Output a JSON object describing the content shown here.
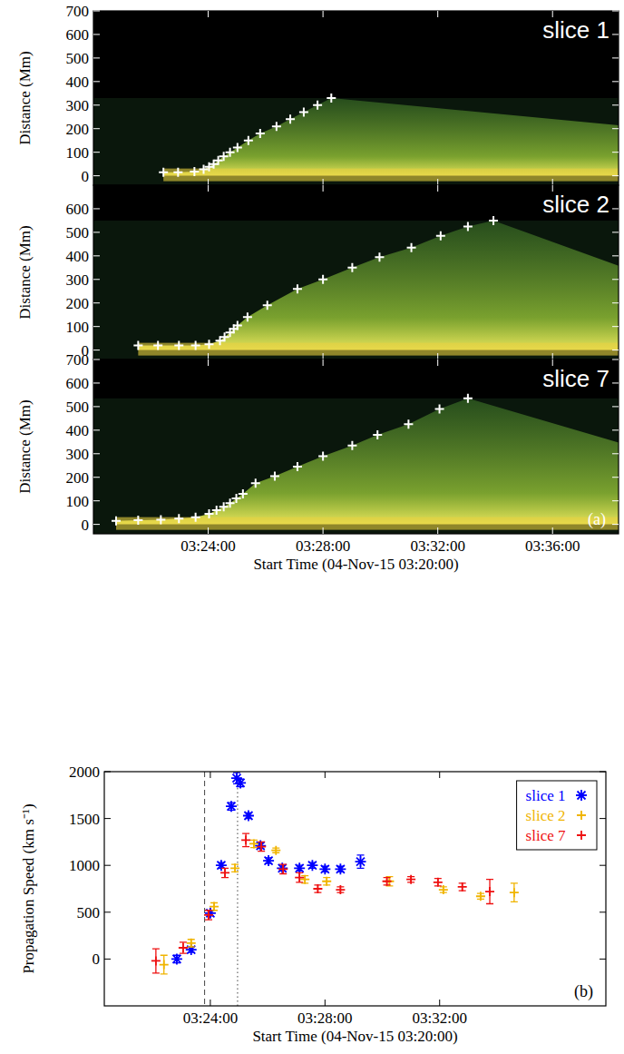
{
  "chart_data": [
    {
      "type": "scatter",
      "title": "slice 1",
      "ylabel": "Distance (Mm)",
      "tick_labels": "y",
      "marker": "plus",
      "color": "#ffffff",
      "x": [
        2.44,
        2.95,
        3.52,
        3.84,
        4.03,
        4.19,
        4.35,
        4.54,
        4.76,
        5.02,
        5.4,
        5.81,
        6.38,
        6.86,
        7.33,
        7.81,
        8.29
      ],
      "values": [
        15,
        15,
        18,
        27,
        38,
        50,
        65,
        82,
        100,
        120,
        150,
        180,
        210,
        240,
        270,
        300,
        330
      ],
      "xlim": [
        0,
        18.3
      ],
      "ylim": [
        -40,
        700
      ],
      "xticks": [
        {
          "value": 4,
          "label": "03:24:00"
        },
        {
          "value": 8,
          "label": "03:28:00"
        },
        {
          "value": 12,
          "label": "03:32:00"
        },
        {
          "value": 16,
          "label": "03:36:00"
        }
      ],
      "yticks": [
        0,
        100,
        200,
        300,
        400,
        500,
        600,
        700
      ]
    },
    {
      "type": "scatter",
      "title": "slice 2",
      "ylabel": "Distance (Mm)",
      "tick_labels": "y",
      "marker": "plus",
      "color": "#ffffff",
      "x": [
        1.56,
        2.25,
        2.98,
        3.56,
        4.03,
        4.41,
        4.57,
        4.76,
        4.89,
        5.02,
        5.37,
        6.06,
        7.11,
        8.0,
        9.02,
        9.97,
        11.08,
        12.1,
        13.05,
        13.94
      ],
      "values": [
        20,
        20,
        20,
        20,
        25,
        40,
        55,
        75,
        90,
        105,
        140,
        190,
        260,
        300,
        350,
        395,
        435,
        485,
        525,
        550
      ],
      "xlim": [
        0,
        18.3
      ],
      "ylim": [
        -40,
        700
      ],
      "xticks": [
        {
          "value": 4,
          "label": "03:24:00"
        },
        {
          "value": 8,
          "label": "03:28:00"
        },
        {
          "value": 12,
          "label": "03:32:00"
        },
        {
          "value": 16,
          "label": "03:36:00"
        }
      ],
      "yticks": [
        0,
        100,
        200,
        300,
        400,
        500,
        600
      ]
    },
    {
      "type": "scatter",
      "title": "slice 7",
      "ylabel": "Distance (Mm)",
      "xlabel": "Start Time (04-Nov-15 03:20:00)",
      "panel_label": "(a)",
      "marker": "plus",
      "color": "#ffffff",
      "x": [
        0.79,
        1.56,
        2.35,
        2.98,
        3.56,
        4.03,
        4.29,
        4.54,
        4.76,
        4.98,
        5.21,
        5.65,
        6.32,
        7.11,
        8.0,
        9.02,
        9.9,
        10.98,
        12.06,
        13.05
      ],
      "values": [
        15,
        18,
        20,
        25,
        30,
        45,
        60,
        75,
        90,
        110,
        130,
        175,
        205,
        245,
        290,
        335,
        380,
        425,
        490,
        535
      ],
      "xlim": [
        0,
        18.3
      ],
      "ylim": [
        -40,
        700
      ],
      "xticks": [
        {
          "value": 4,
          "label": "03:24:00"
        },
        {
          "value": 8,
          "label": "03:28:00"
        },
        {
          "value": 12,
          "label": "03:32:00"
        },
        {
          "value": 16,
          "label": "03:36:00"
        }
      ],
      "yticks": [
        0,
        100,
        200,
        300,
        400,
        500,
        600,
        700
      ]
    },
    {
      "type": "scatter",
      "ylabel": "Propagation Speed (km s⁻¹)",
      "xlabel": "Start Time (04-Nov-15 03:20:00)",
      "panel_label": "(b)",
      "legend": "upper right",
      "xlim": [
        0.3,
        17.8
      ],
      "ylim": [
        -500,
        2000
      ],
      "xticks": [
        {
          "value": 4,
          "label": "03:24:00"
        },
        {
          "value": 8,
          "label": "03:28:00"
        },
        {
          "value": 12,
          "label": "03:32:00"
        }
      ],
      "yticks": [
        0,
        500,
        1000,
        1500,
        2000
      ],
      "vlines": [
        {
          "value": 3.8,
          "line_style": "dashed"
        },
        {
          "value": 4.95,
          "line_style": "dotted"
        }
      ],
      "series": [
        {
          "name": "slice 1",
          "color": "#0000ff",
          "marker": "asterisk",
          "x": [
            2.83,
            3.33,
            4.0,
            4.38,
            4.73,
            4.92,
            5.05,
            5.33,
            5.75,
            6.03,
            6.51,
            7.11,
            7.56,
            8.0,
            8.54,
            9.24
          ],
          "values": [
            0,
            100,
            490,
            1000,
            1630,
            1930,
            1880,
            1530,
            1210,
            1050,
            970,
            970,
            1000,
            960,
            960,
            1040
          ],
          "errors": [
            40,
            30,
            30,
            30,
            40,
            60,
            40,
            30,
            30,
            30,
            30,
            30,
            30,
            30,
            30,
            70
          ]
        },
        {
          "name": "slice 2",
          "color": "#f0b400",
          "marker": "plus",
          "x": [
            2.38,
            3.33,
            4.13,
            4.86,
            5.52,
            6.29,
            7.3,
            8.06,
            10.25,
            12.13,
            13.43,
            14.6
          ],
          "values": [
            -60,
            170,
            560,
            970,
            1230,
            1160,
            850,
            830,
            830,
            740,
            670,
            710
          ],
          "errors": [
            100,
            40,
            40,
            40,
            40,
            25,
            40,
            40,
            50,
            30,
            30,
            100
          ]
        },
        {
          "name": "slice 7",
          "color": "#ee1010",
          "marker": "plus",
          "x": [
            2.1,
            3.05,
            3.94,
            4.51,
            5.24,
            5.78,
            6.54,
            7.11,
            7.75,
            8.54,
            10.16,
            11.0,
            11.94,
            12.79,
            13.75
          ],
          "values": [
            -20,
            120,
            470,
            920,
            1270,
            1200,
            960,
            870,
            750,
            740,
            830,
            850,
            820,
            770,
            720
          ],
          "errors": [
            130,
            60,
            50,
            50,
            70,
            50,
            50,
            50,
            40,
            30,
            40,
            30,
            40,
            40,
            130
          ]
        }
      ]
    }
  ]
}
